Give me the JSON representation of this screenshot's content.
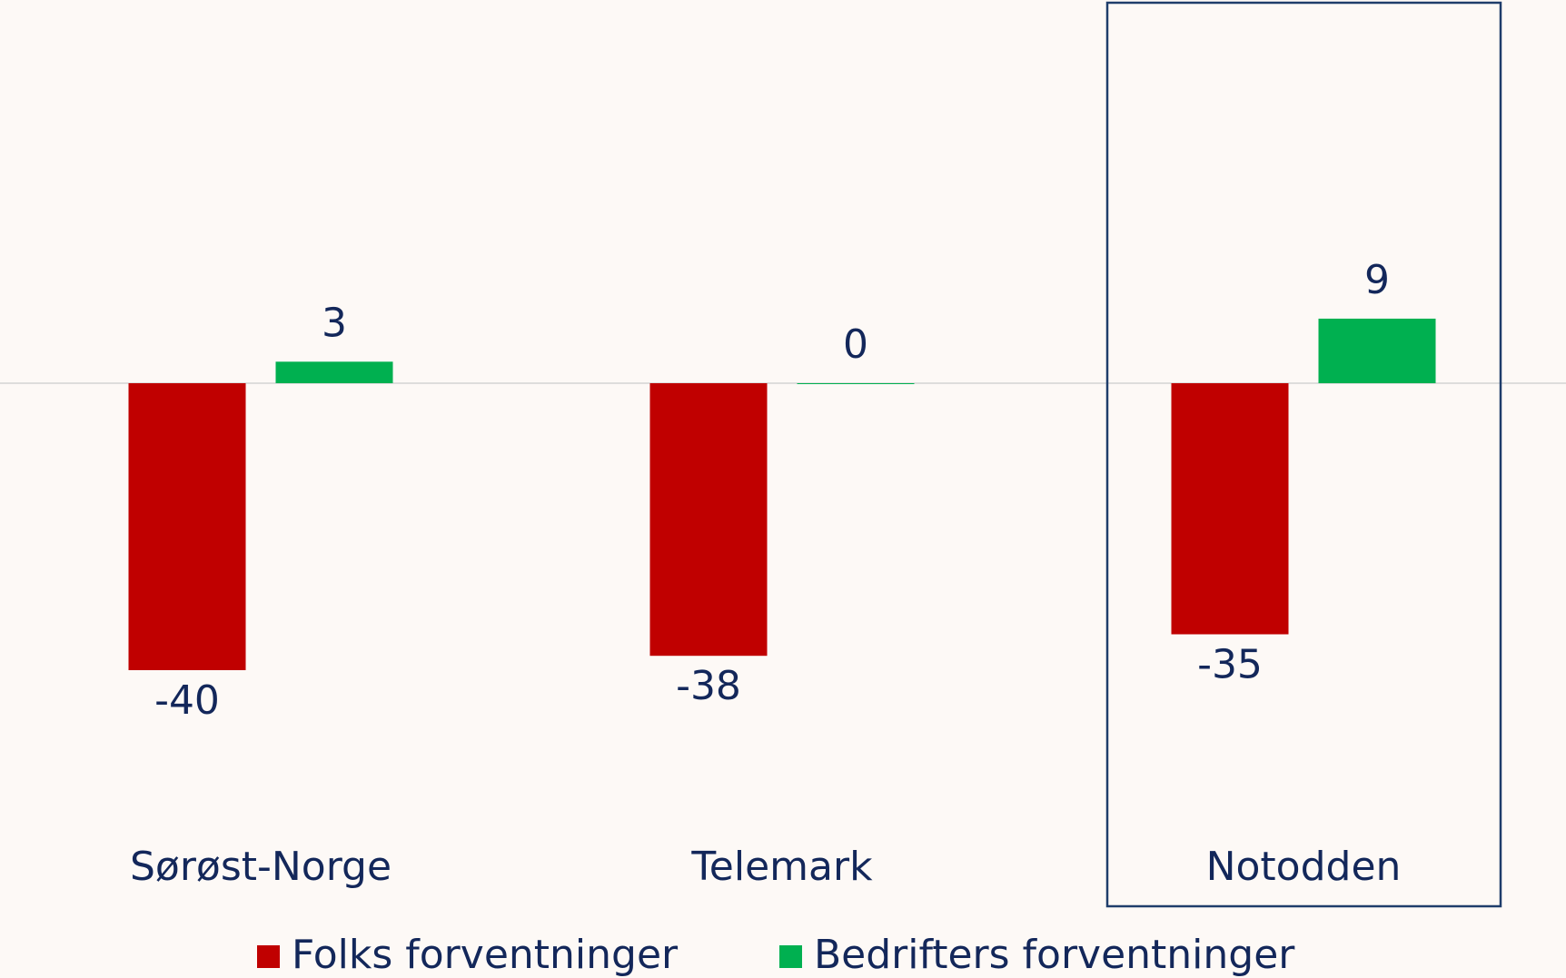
{
  "chart_data": {
    "type": "bar",
    "categories": [
      "Sørøst-Norge",
      "Telemark",
      "Notodden"
    ],
    "series": [
      {
        "name": "Folks forventninger",
        "color": "#c00000",
        "values": [
          -40,
          -38,
          -35
        ]
      },
      {
        "name": "Bedrifters forventninger",
        "color": "#00b050",
        "values": [
          3,
          0,
          9
        ]
      }
    ],
    "ylim": [
      -50,
      50
    ]
  }
}
